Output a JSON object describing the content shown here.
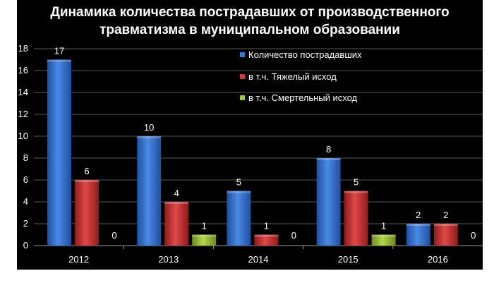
{
  "title_line1": "Динамика количества пострадавших от производственного",
  "title_line2": "травматизма в муниципальном образовании",
  "legend": [
    {
      "label": "Количество пострадавших",
      "color": "#3a78d6"
    },
    {
      "label": "в т.ч. Тяжелый исход",
      "color": "#d23a3a"
    },
    {
      "label": "в т.ч. Смертельный исход",
      "color": "#9ec33a"
    }
  ],
  "chart_data": {
    "type": "bar",
    "title": "Динамика количества пострадавших от производственного травматизма в муниципальном образовании",
    "categories": [
      "2012",
      "2013",
      "2014",
      "2015",
      "2016"
    ],
    "series": [
      {
        "name": "Количество пострадавших",
        "values": [
          17,
          10,
          5,
          8,
          2
        ],
        "color": "#3a78d6"
      },
      {
        "name": "в т.ч. Тяжелый исход",
        "values": [
          6,
          4,
          1,
          5,
          2
        ],
        "color": "#d23a3a"
      },
      {
        "name": "в т.ч. Смертельный исход",
        "values": [
          0,
          1,
          0,
          1,
          0
        ],
        "color": "#9ec33a"
      }
    ],
    "ylim": [
      0,
      18
    ],
    "yticks": [
      0,
      2,
      4,
      6,
      8,
      10,
      12,
      14,
      16,
      18
    ],
    "grid": true,
    "legend_position": "top-right",
    "data_labels": true
  }
}
